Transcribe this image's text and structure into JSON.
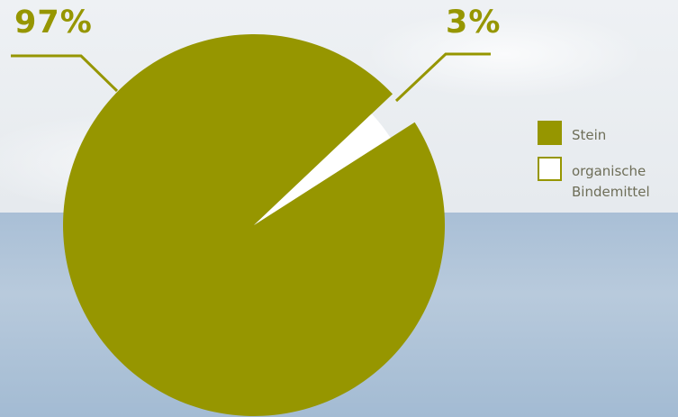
{
  "colors": {
    "stone": "#969600",
    "binder": "#ffffff",
    "label": "#969600",
    "legend_text": "#6e6e58"
  },
  "chart_data": {
    "type": "pie",
    "title": "",
    "slices": [
      {
        "label": "Stein",
        "value": 97,
        "display": "97%"
      },
      {
        "label": "organische Bindemittel",
        "value": 3,
        "display": "3%"
      }
    ],
    "legend_position": "right"
  }
}
